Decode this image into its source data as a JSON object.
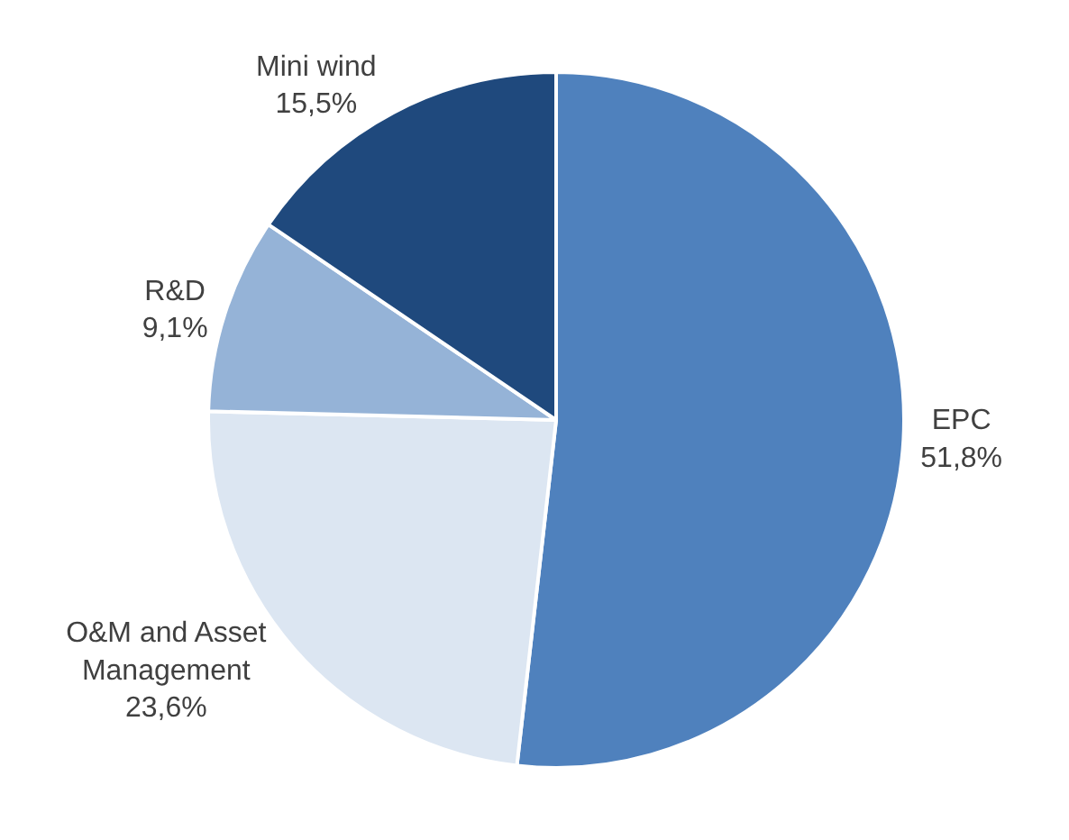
{
  "chart_data": {
    "type": "pie",
    "categories": [
      "EPC",
      "O&M and Asset Management",
      "R&D",
      "Mini wind"
    ],
    "values": [
      51.8,
      23.6,
      9.1,
      15.5
    ],
    "value_labels": [
      "51,8%",
      "23,6%",
      "9,1%",
      "15,5%"
    ],
    "colors": [
      "#4f81bd",
      "#dce6f2",
      "#95b3d7",
      "#1f497d"
    ],
    "legend": false
  }
}
